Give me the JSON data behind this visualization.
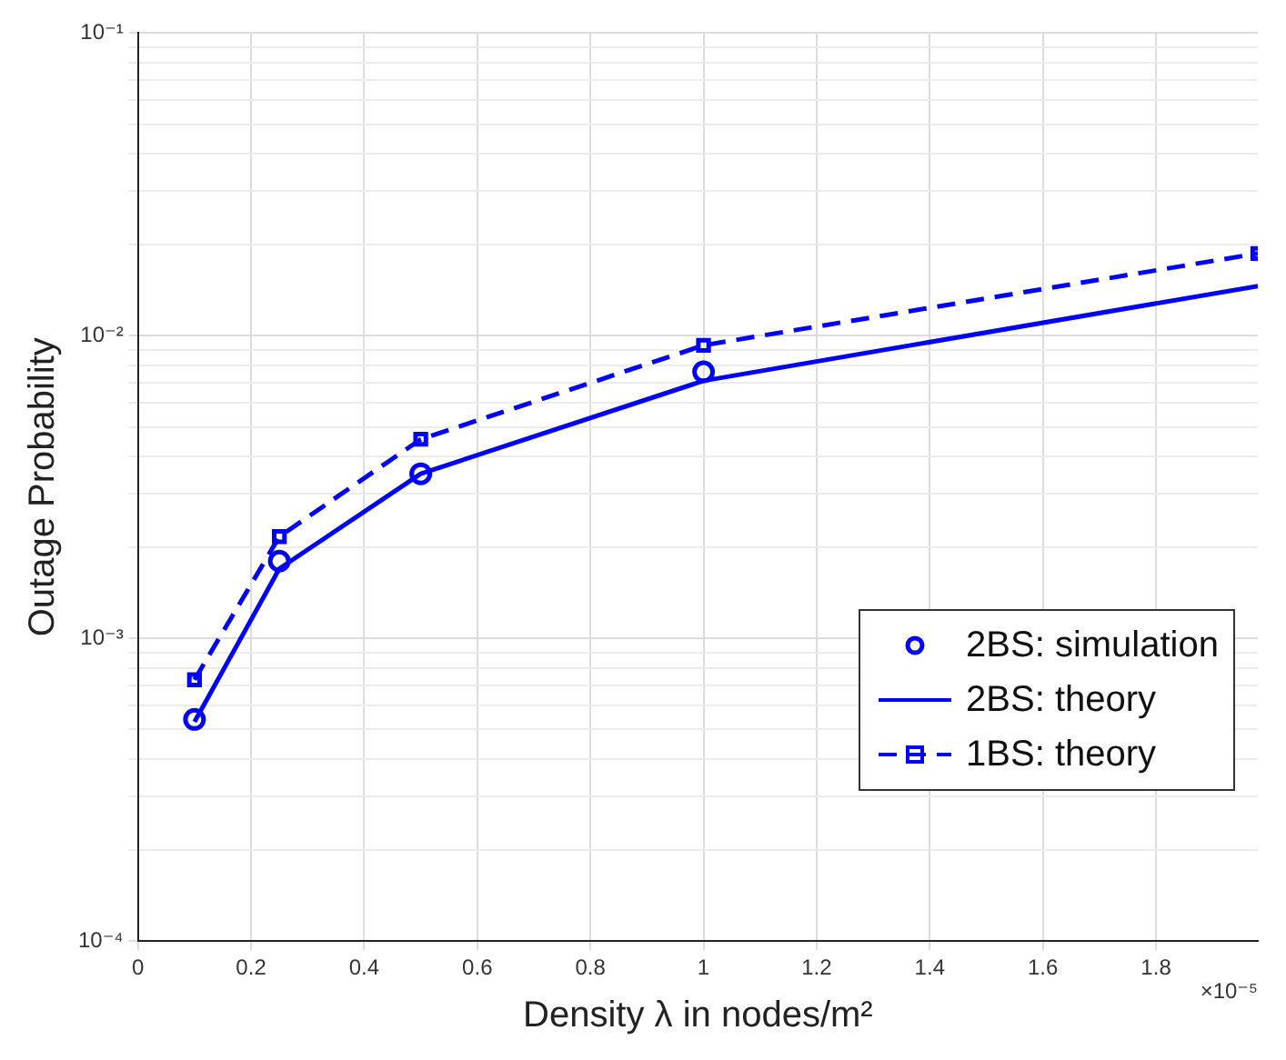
{
  "chart_data": {
    "type": "line",
    "xlabel": "Density λ in nodes/m²",
    "ylabel": "Outage Probability",
    "log": "y",
    "grid": true,
    "legend": "bottom right",
    "xlim": [
      0,
      1.98
    ],
    "xticks": [
      0,
      0.2,
      0.4,
      0.6,
      0.8,
      1,
      1.2,
      1.4,
      1.6,
      1.8
    ],
    "ylim": [
      0.0001,
      0.1
    ],
    "yticks": [
      {
        "value": 0.0001,
        "label": "10⁻⁴"
      },
      {
        "value": 0.0002,
        "label": null
      },
      {
        "value": 0.0003,
        "label": null
      },
      {
        "value": 0.0004,
        "label": null
      },
      {
        "value": 0.0005,
        "label": null
      },
      {
        "value": 0.0006,
        "label": null
      },
      {
        "value": 0.0007,
        "label": null
      },
      {
        "value": 0.0008,
        "label": null
      },
      {
        "value": 0.0009,
        "label": null
      },
      {
        "value": 0.001,
        "label": "10⁻³"
      },
      {
        "value": 0.002,
        "label": null
      },
      {
        "value": 0.003,
        "label": null
      },
      {
        "value": 0.004,
        "label": null
      },
      {
        "value": 0.005,
        "label": null
      },
      {
        "value": 0.006,
        "label": null
      },
      {
        "value": 0.007,
        "label": null
      },
      {
        "value": 0.008,
        "label": null
      },
      {
        "value": 0.009,
        "label": null
      },
      {
        "value": 0.01,
        "label": "10⁻²"
      },
      {
        "value": 0.02,
        "label": null
      },
      {
        "value": 0.03,
        "label": null
      },
      {
        "value": 0.04,
        "label": null
      },
      {
        "value": 0.05,
        "label": null
      },
      {
        "value": 0.06,
        "label": null
      },
      {
        "value": 0.07,
        "label": null
      },
      {
        "value": 0.08,
        "label": null
      },
      {
        "value": 0.09,
        "label": null
      },
      {
        "value": 0.1,
        "label": "10⁻¹"
      }
    ],
    "annotations": [
      "×10⁻⁵"
    ],
    "series": [
      {
        "name": "2BS: simulation",
        "type": "scatter",
        "marker": "circle",
        "color": "#0000ff",
        "x": [
          0.1,
          0.25,
          0.5,
          1
        ],
        "values": [
          0.00054,
          0.0018,
          0.0035,
          0.0076
        ]
      },
      {
        "name": "2BS: theory",
        "marker": "none",
        "line_style": "solid",
        "color": "#0000ff",
        "x": [
          0.1,
          0.25,
          0.5,
          1,
          1.98
        ],
        "values": [
          0.00053,
          0.0017,
          0.0035,
          0.0071,
          0.0146
        ]
      },
      {
        "name": "1BS: theory",
        "type": "line",
        "marker": "square",
        "line_style": "dashed",
        "color": "#0000ff",
        "x": [
          0.1,
          0.25,
          0.5,
          1,
          1.98
        ],
        "values": [
          0.00073,
          0.00217,
          0.00455,
          0.0093,
          0.0187
        ]
      }
    ]
  }
}
